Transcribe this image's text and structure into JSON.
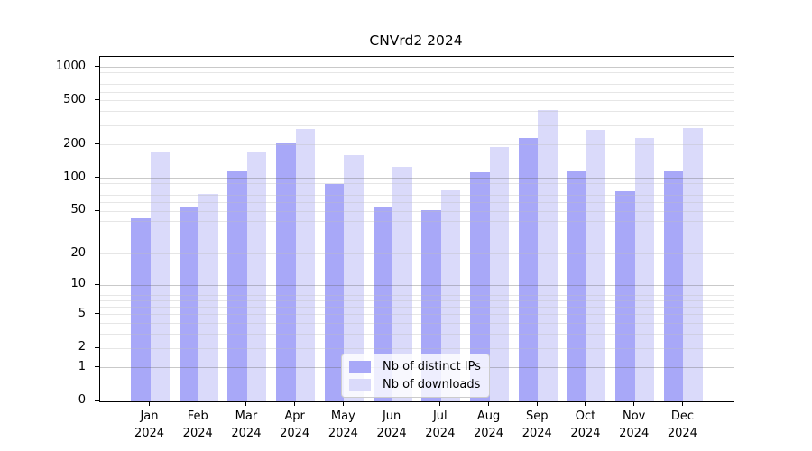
{
  "chart_data": {
    "type": "bar",
    "title": "CNVrd2 2024",
    "categories": [
      "Jan",
      "Feb",
      "Mar",
      "Apr",
      "May",
      "Jun",
      "Jul",
      "Aug",
      "Sep",
      "Oct",
      "Nov",
      "Dec"
    ],
    "category_year": "2024",
    "series": [
      {
        "name": "Nb of distinct IPs",
        "color": "#a8a8f8",
        "values": [
          43,
          54,
          116,
          208,
          88,
          54,
          51,
          114,
          233,
          116,
          77,
          116
        ]
      },
      {
        "name": "Nb of downloads",
        "color": "#dadafa",
        "values": [
          170,
          72,
          170,
          280,
          163,
          128,
          78,
          192,
          410,
          275,
          232,
          285
        ]
      }
    ],
    "ylabel": "",
    "xlabel": "",
    "ytick_labels": [
      "1000",
      "500",
      "200",
      "100",
      "50",
      "20",
      "10",
      "5",
      "2",
      "1",
      "0"
    ],
    "ytick_values": [
      1000,
      500,
      200,
      100,
      50,
      20,
      10,
      5,
      2,
      1,
      0
    ],
    "yscale": "log10(value+1)",
    "ylim": [
      0,
      1250
    ],
    "grid": true,
    "legend_position": "lower center"
  }
}
